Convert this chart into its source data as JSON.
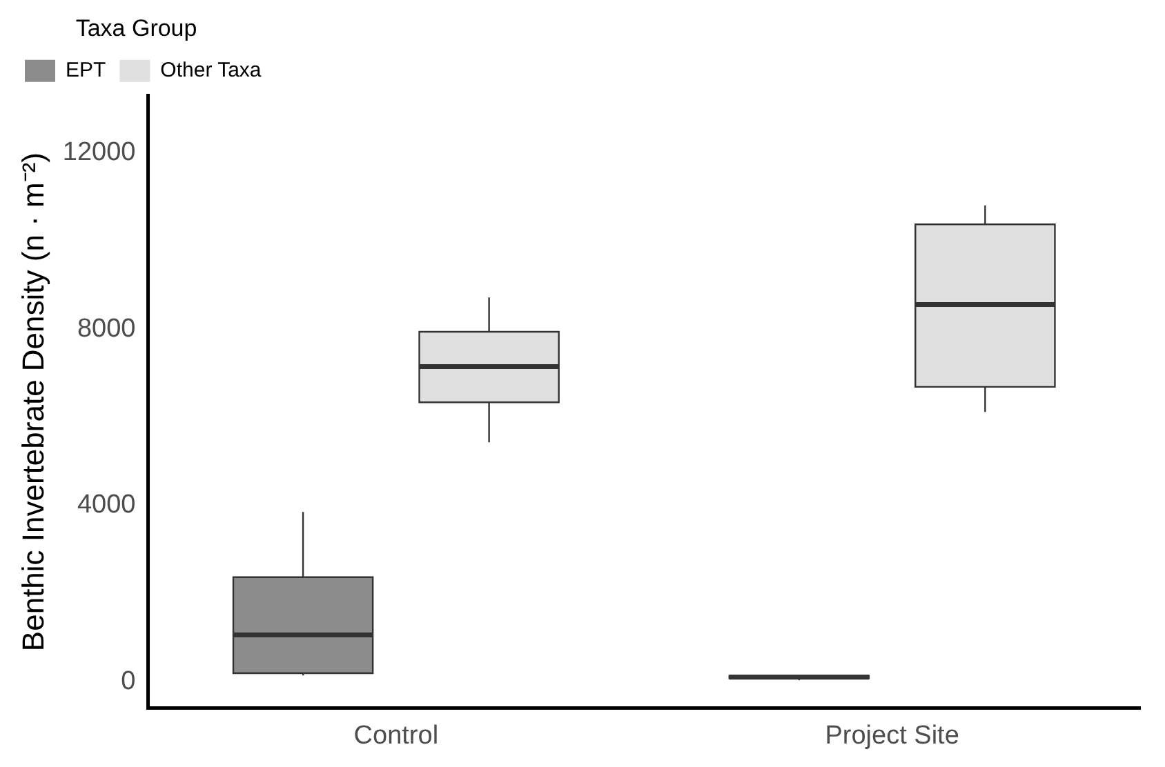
{
  "chart_data": {
    "type": "box",
    "ylabel": "Benthic Invertebrate Density (n · m⁻²)",
    "legend_title": "Taxa Group",
    "categories": [
      "Control",
      "Project Site"
    ],
    "series": [
      {
        "name": "EPT",
        "color": "#8c8c8c",
        "boxes": [
          {
            "low": 140,
            "q1": 190,
            "median": 1060,
            "q3": 2370,
            "high": 3850
          },
          {
            "low": 30,
            "q1": 70,
            "median": 100,
            "q3": 130,
            "high": 130
          }
        ]
      },
      {
        "name": "Other Taxa",
        "color": "#e0e0e0",
        "boxes": [
          {
            "low": 5430,
            "q1": 6340,
            "median": 7150,
            "q3": 7940,
            "high": 8720
          },
          {
            "low": 6120,
            "q1": 6690,
            "median": 8560,
            "q3": 10380,
            "high": 10810
          }
        ]
      }
    ],
    "ylim": [
      -600,
      13300
    ],
    "yticks": [
      0,
      4000,
      8000,
      12000
    ],
    "grid": false,
    "legend": "top left"
  }
}
